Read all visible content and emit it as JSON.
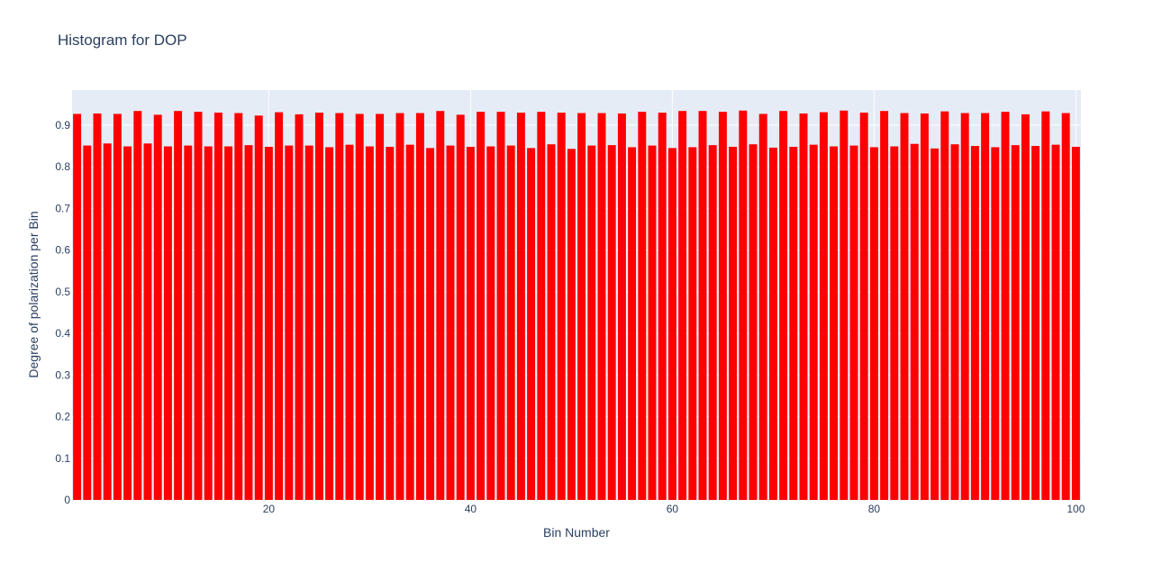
{
  "chart_data": {
    "type": "bar",
    "title": "Histogram for DOP",
    "xlabel": "Bin Number",
    "ylabel": "Degree of polarization per Bin",
    "x": [
      1,
      2,
      3,
      4,
      5,
      6,
      7,
      8,
      9,
      10,
      11,
      12,
      13,
      14,
      15,
      16,
      17,
      18,
      19,
      20,
      21,
      22,
      23,
      24,
      25,
      26,
      27,
      28,
      29,
      30,
      31,
      32,
      33,
      34,
      35,
      36,
      37,
      38,
      39,
      40,
      41,
      42,
      43,
      44,
      45,
      46,
      47,
      48,
      49,
      50,
      51,
      52,
      53,
      54,
      55,
      56,
      57,
      58,
      59,
      60,
      61,
      62,
      63,
      64,
      65,
      66,
      67,
      68,
      69,
      70,
      71,
      72,
      73,
      74,
      75,
      76,
      77,
      78,
      79,
      80,
      81,
      82,
      83,
      84,
      85,
      86,
      87,
      88,
      89,
      90,
      91,
      92,
      93,
      94,
      95,
      96,
      97,
      98,
      99,
      100
    ],
    "values": [
      0.927,
      0.851,
      0.928,
      0.856,
      0.927,
      0.849,
      0.934,
      0.856,
      0.925,
      0.849,
      0.934,
      0.851,
      0.932,
      0.849,
      0.93,
      0.849,
      0.929,
      0.852,
      0.923,
      0.848,
      0.931,
      0.851,
      0.926,
      0.851,
      0.93,
      0.847,
      0.929,
      0.853,
      0.927,
      0.849,
      0.927,
      0.848,
      0.929,
      0.853,
      0.929,
      0.845,
      0.934,
      0.851,
      0.925,
      0.848,
      0.932,
      0.849,
      0.932,
      0.851,
      0.93,
      0.845,
      0.932,
      0.854,
      0.93,
      0.843,
      0.929,
      0.851,
      0.929,
      0.852,
      0.928,
      0.847,
      0.932,
      0.851,
      0.93,
      0.845,
      0.934,
      0.847,
      0.934,
      0.852,
      0.932,
      0.848,
      0.935,
      0.854,
      0.927,
      0.846,
      0.934,
      0.848,
      0.928,
      0.853,
      0.931,
      0.849,
      0.935,
      0.851,
      0.93,
      0.847,
      0.934,
      0.849,
      0.929,
      0.855,
      0.928,
      0.844,
      0.933,
      0.854,
      0.929,
      0.85,
      0.929,
      0.847,
      0.932,
      0.852,
      0.926,
      0.85,
      0.933,
      0.853,
      0.929,
      0.848
    ],
    "xlim": [
      0.5,
      100.5
    ],
    "ylim": [
      0,
      0.9842
    ],
    "xticks": [
      20,
      40,
      60,
      80,
      100
    ],
    "yticks": [
      0,
      0.1,
      0.2,
      0.3,
      0.4,
      0.5,
      0.6,
      0.7,
      0.8,
      0.9
    ],
    "xtick_labels": [
      "20",
      "40",
      "60",
      "80",
      "100"
    ],
    "ytick_labels": [
      "0",
      "0.1",
      "0.2",
      "0.3",
      "0.4",
      "0.5",
      "0.6",
      "0.7",
      "0.8",
      "0.9"
    ],
    "grid": true,
    "colors": {
      "bar": "#ff0000",
      "plot_background": "#e5ecf6",
      "gridline": "#ffffff",
      "text": "#2a3f5f"
    }
  }
}
